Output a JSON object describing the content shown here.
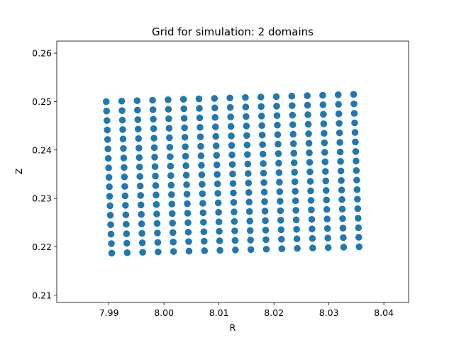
{
  "chart_data": {
    "type": "scatter",
    "title": "Grid for simulation: 2 domains",
    "xlabel": "R",
    "ylabel": "Z",
    "xlim": [
      7.9805,
      8.0445
    ],
    "ylim": [
      0.2085,
      0.2625
    ],
    "xticks": [
      7.99,
      8.0,
      8.01,
      8.02,
      8.03,
      8.04
    ],
    "xtick_labels": [
      "7.99",
      "8.00",
      "8.01",
      "8.02",
      "8.03",
      "8.04"
    ],
    "yticks": [
      0.21,
      0.22,
      0.23,
      0.24,
      0.25,
      0.26
    ],
    "ytick_labels": [
      "0.21",
      "0.22",
      "0.23",
      "0.24",
      "0.25",
      "0.26"
    ],
    "grid": false,
    "marker_color": "#1f77b4",
    "grid_points": {
      "columns": 17,
      "rows": 17,
      "top_left": [
        7.9895,
        0.25
      ],
      "top_right": [
        8.0345,
        0.2515
      ],
      "bottom_left": [
        7.9905,
        0.2187
      ],
      "bottom_right": [
        8.0355,
        0.22
      ]
    }
  }
}
